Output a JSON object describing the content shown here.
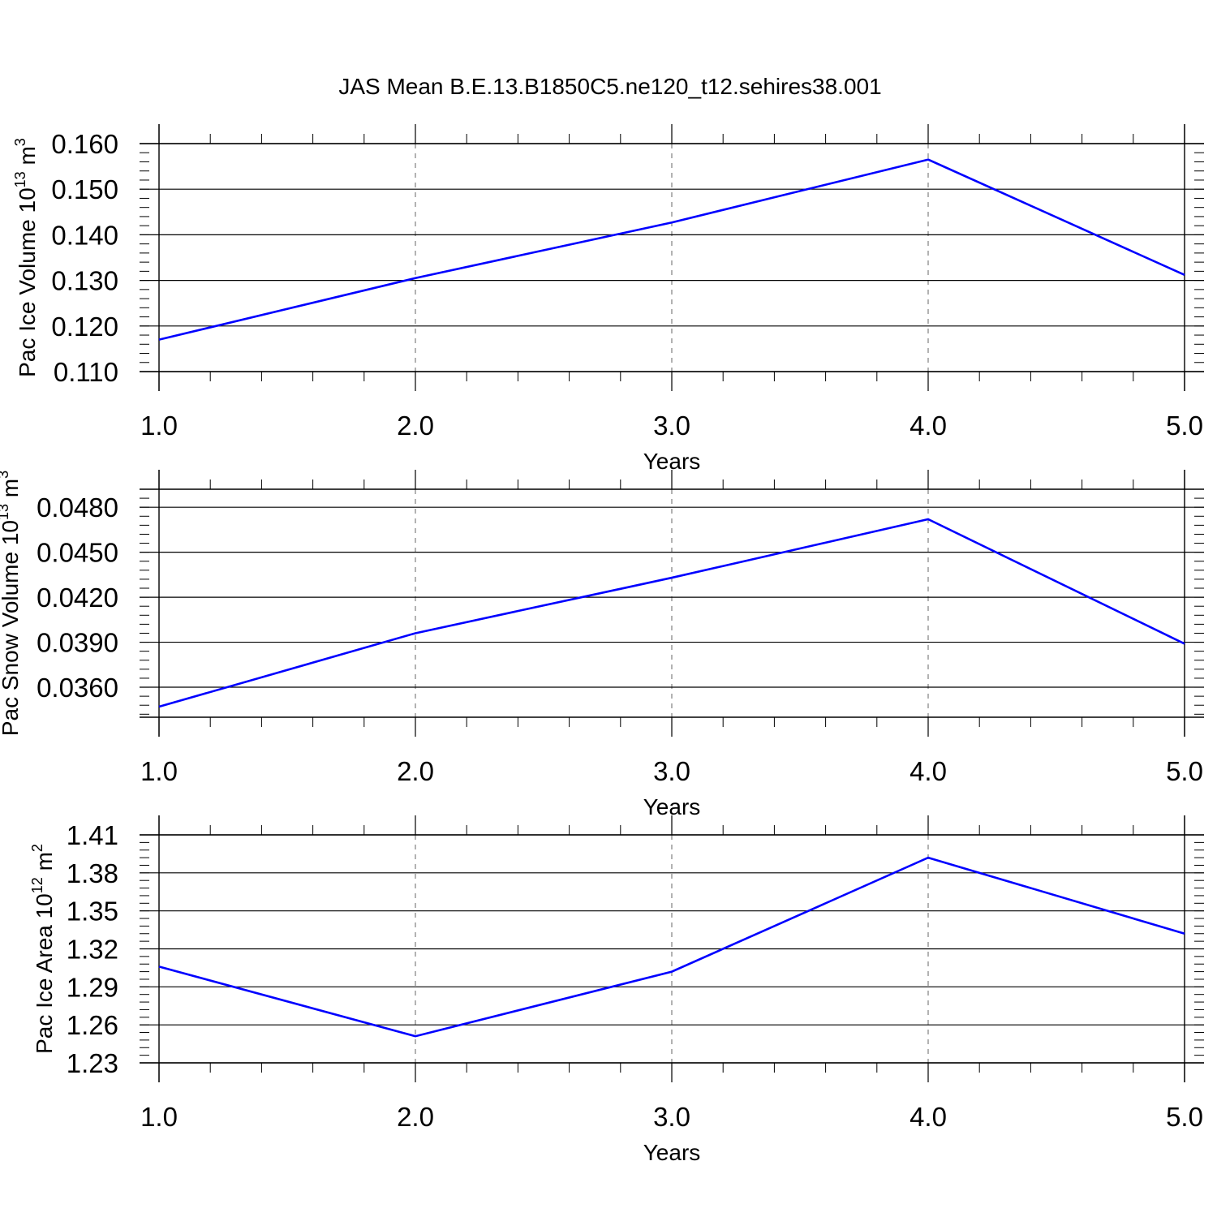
{
  "title": "JAS Mean B.E.13.B1850C5.ne120_t12.sehires38.001",
  "colors": {
    "line": "#0000ff",
    "axis": "#000000",
    "grid": "#808080",
    "background": "#ffffff"
  },
  "chart_data": [
    {
      "type": "line",
      "ylabel": {
        "main": "Pac Ice Volume 10",
        "sup": "13",
        "unit": " m",
        "unit_sup": "3"
      },
      "xlabel": "Years",
      "xlim": [
        1.0,
        5.0
      ],
      "ylim": [
        0.11,
        0.16
      ],
      "x_ticks": [
        "1.0",
        "2.0",
        "3.0",
        "4.0",
        "5.0"
      ],
      "y_ticks": [
        "0.110",
        "0.120",
        "0.130",
        "0.140",
        "0.150",
        "0.160"
      ],
      "x": [
        1.0,
        2.0,
        3.0,
        4.0,
        5.0
      ],
      "values": [
        0.117,
        0.1305,
        0.1427,
        0.1565,
        0.1312
      ],
      "grid": "vertical dashed"
    },
    {
      "type": "line",
      "ylabel": {
        "main": "Pac Snow Volume 10",
        "sup": "13",
        "unit": " m",
        "unit_sup": "3"
      },
      "xlabel": "Years",
      "xlim": [
        1.0,
        5.0
      ],
      "ylim": [
        0.034,
        0.0492
      ],
      "x_ticks": [
        "1.0",
        "2.0",
        "3.0",
        "4.0",
        "5.0"
      ],
      "y_ticks": [
        "0.0360",
        "0.0390",
        "0.0420",
        "0.0450",
        "0.0480"
      ],
      "x": [
        1.0,
        2.0,
        3.0,
        4.0,
        5.0
      ],
      "values": [
        0.0347,
        0.0396,
        0.0433,
        0.0472,
        0.0389
      ],
      "grid": "vertical dashed"
    },
    {
      "type": "line",
      "ylabel": {
        "main": "Pac Ice Area 10",
        "sup": "12",
        "unit": " m",
        "unit_sup": "2"
      },
      "xlabel": "Years",
      "xlim": [
        1.0,
        5.0
      ],
      "ylim": [
        1.23,
        1.41
      ],
      "x_ticks": [
        "1.0",
        "2.0",
        "3.0",
        "4.0",
        "5.0"
      ],
      "y_ticks": [
        "1.23",
        "1.26",
        "1.29",
        "1.32",
        "1.35",
        "1.38",
        "1.41"
      ],
      "x": [
        1.0,
        2.0,
        3.0,
        4.0,
        5.0
      ],
      "values": [
        1.306,
        1.251,
        1.302,
        1.392,
        1.332
      ],
      "grid": "vertical dashed"
    }
  ]
}
